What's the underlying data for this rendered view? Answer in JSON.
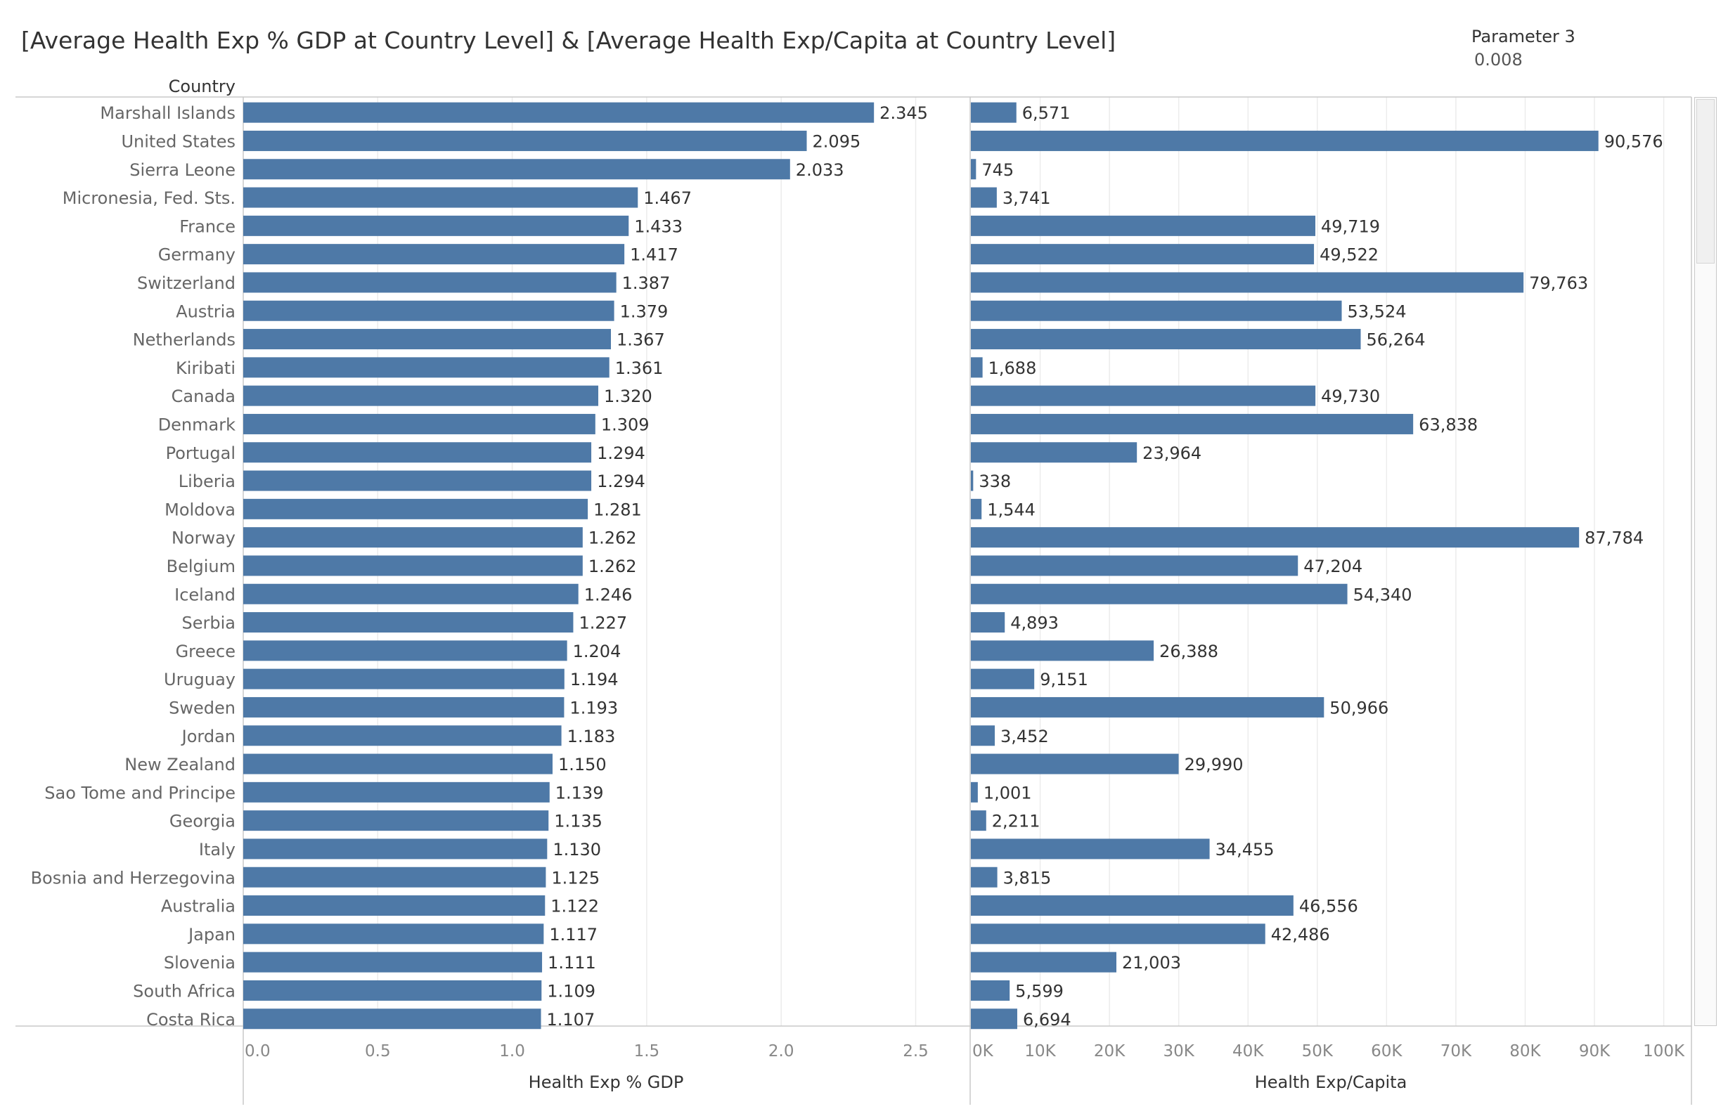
{
  "header": {
    "title": "[Average Health Exp % GDP at Country Level] & [Average Health Exp/Capita at Country Level]",
    "parameter_label": "Parameter 3",
    "parameter_value": "0.008"
  },
  "colors": {
    "bar": "#4e79a7",
    "grid": "#ececec",
    "axis": "#c8c8c8",
    "label": "#666666",
    "value_label": "#333333"
  },
  "chart_data": {
    "type": "bar",
    "orientation": "horizontal",
    "row_header": "Country",
    "categories": [
      "Marshall Islands",
      "United States",
      "Sierra Leone",
      "Micronesia, Fed. Sts.",
      "France",
      "Germany",
      "Switzerland",
      "Austria",
      "Netherlands",
      "Kiribati",
      "Canada",
      "Denmark",
      "Portugal",
      "Liberia",
      "Moldova",
      "Norway",
      "Belgium",
      "Iceland",
      "Serbia",
      "Greece",
      "Uruguay",
      "Sweden",
      "Jordan",
      "New Zealand",
      "Sao Tome and Principe",
      "Georgia",
      "Italy",
      "Bosnia and Herzegovina",
      "Australia",
      "Japan",
      "Slovenia",
      "South Africa",
      "Costa Rica"
    ],
    "series": [
      {
        "name": "Health Exp % GDP",
        "xlabel": "Health Exp % GDP",
        "xlim": [
          0,
          2.7
        ],
        "ticks": [
          0,
          0.5,
          1,
          1.5,
          2,
          2.5
        ],
        "tick_labels": [
          "0.0",
          "0.5",
          "1.0",
          "1.5",
          "2.0",
          "2.5"
        ],
        "values": [
          2.345,
          2.095,
          2.033,
          1.467,
          1.433,
          1.417,
          1.387,
          1.379,
          1.367,
          1.361,
          1.32,
          1.309,
          1.294,
          1.294,
          1.281,
          1.262,
          1.262,
          1.246,
          1.227,
          1.204,
          1.194,
          1.193,
          1.183,
          1.15,
          1.139,
          1.135,
          1.13,
          1.125,
          1.122,
          1.117,
          1.111,
          1.109,
          1.107
        ],
        "value_labels": [
          "2.345",
          "2.095",
          "2.033",
          "1.467",
          "1.433",
          "1.417",
          "1.387",
          "1.379",
          "1.367",
          "1.361",
          "1.320",
          "1.309",
          "1.294",
          "1.294",
          "1.281",
          "1.262",
          "1.262",
          "1.246",
          "1.227",
          "1.204",
          "1.194",
          "1.193",
          "1.183",
          "1.150",
          "1.139",
          "1.135",
          "1.130",
          "1.125",
          "1.122",
          "1.117",
          "1.111",
          "1.109",
          "1.107"
        ]
      },
      {
        "name": "Health Exp/Capita",
        "xlabel": "Health Exp/Capita",
        "xlim": [
          0,
          104000
        ],
        "ticks": [
          0,
          10000,
          20000,
          30000,
          40000,
          50000,
          60000,
          70000,
          80000,
          90000,
          100000
        ],
        "tick_labels": [
          "0K",
          "10K",
          "20K",
          "30K",
          "40K",
          "50K",
          "60K",
          "70K",
          "80K",
          "90K",
          "100K"
        ],
        "values": [
          6571,
          90576,
          745,
          3741,
          49719,
          49522,
          79763,
          53524,
          56264,
          1688,
          49730,
          63838,
          23964,
          338,
          1544,
          87784,
          47204,
          54340,
          4893,
          26388,
          9151,
          50966,
          3452,
          29990,
          1001,
          2211,
          34455,
          3815,
          46556,
          42486,
          21003,
          5599,
          6694
        ],
        "value_labels": [
          "6,571",
          "90,576",
          "745",
          "3,741",
          "49,719",
          "49,522",
          "79,763",
          "53,524",
          "56,264",
          "1,688",
          "49,730",
          "63,838",
          "23,964",
          "338",
          "1,544",
          "87,784",
          "47,204",
          "54,340",
          "4,893",
          "26,388",
          "9,151",
          "50,966",
          "3,452",
          "29,990",
          "1,001",
          "2,211",
          "34,455",
          "3,815",
          "46,556",
          "42,486",
          "21,003",
          "5,599",
          "6,694"
        ]
      }
    ],
    "grid": true,
    "legend": "none"
  }
}
